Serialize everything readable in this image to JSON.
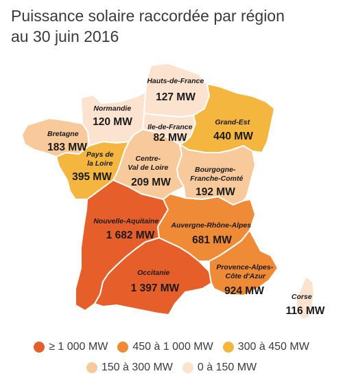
{
  "title_line1": "Puissance solaire raccordée par région",
  "title_line2": "au 30 juin 2016",
  "regions": {
    "hauts_de_france": {
      "name": [
        "Hauts-de-France"
      ],
      "value": "127 MW",
      "color": "#fce3d0"
    },
    "normandie": {
      "name": [
        "Normandie"
      ],
      "value": "120 MW",
      "color": "#fce3d0"
    },
    "ile_de_france": {
      "name": [
        "Ile-de-France"
      ],
      "value": "82 MW",
      "color": "#fce3d0"
    },
    "grand_est": {
      "name": [
        "Grand-Est"
      ],
      "value": "440 MW",
      "color": "#f4b63f"
    },
    "bretagne": {
      "name": [
        "Bretagne"
      ],
      "value": "183 MW",
      "color": "#f7c99b"
    },
    "pays_de_la_loire": {
      "name": [
        "Pays de",
        "la Loire"
      ],
      "value": "395 MW",
      "color": "#f4b63f"
    },
    "centre_val_de_loire": {
      "name": [
        "Centre-",
        "Val de Loire"
      ],
      "value": "209 MW",
      "color": "#f7c99b"
    },
    "bourgogne_franche_comte": {
      "name": [
        "Bourgogne-",
        "Franche-Comté"
      ],
      "value": "192 MW",
      "color": "#f7c99b"
    },
    "nouvelle_aquitaine": {
      "name": [
        "Nouvelle-Aquitaine"
      ],
      "value": "1 682 MW",
      "color": "#e65f2b"
    },
    "auvergne_rhone_alpes": {
      "name": [
        "Auvergne-Rhône-Alpes"
      ],
      "value": "681 MW",
      "color": "#ef8a36"
    },
    "occitanie": {
      "name": [
        "Occitanie"
      ],
      "value": "1 397 MW",
      "color": "#e65f2b"
    },
    "provence_alpes_cote_d_azur": {
      "name": [
        "Provence-Alpes-",
        "Côte d'Azur"
      ],
      "value": "924 MW",
      "color": "#ef8a36"
    },
    "corse": {
      "name": [
        "Corse"
      ],
      "value": "116 MW",
      "color": "#fce3d0"
    }
  },
  "legend": [
    {
      "label": "≥ 1 000 MW",
      "color": "#e65f2b"
    },
    {
      "label": "450 à 1 000 MW",
      "color": "#ef8a36"
    },
    {
      "label": "300 à 450 MW",
      "color": "#f4b63f"
    },
    {
      "label": "150 à 300 MW",
      "color": "#f7c99b"
    },
    {
      "label": "0 à 150 MW",
      "color": "#fce3d0"
    }
  ]
}
